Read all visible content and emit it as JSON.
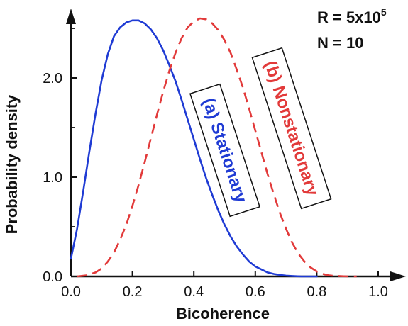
{
  "chart_data": {
    "type": "line",
    "title": "",
    "xlabel": "Bicoherence",
    "ylabel": "Probability density",
    "xlim": [
      0.0,
      1.0
    ],
    "ylim": [
      0.0,
      2.8
    ],
    "grid": false,
    "legend": "none",
    "x_ticks": [
      {
        "value": 0.0,
        "label": "0.0"
      },
      {
        "value": 0.2,
        "label": "0.2"
      },
      {
        "value": 0.4,
        "label": "0.4"
      },
      {
        "value": 0.6,
        "label": "0.6"
      },
      {
        "value": 0.8,
        "label": "0.8"
      },
      {
        "value": 1.0,
        "label": "1.0"
      }
    ],
    "y_ticks": [
      {
        "value": 0.0,
        "label": "0.0"
      },
      {
        "value": 1.0,
        "label": "1.0"
      },
      {
        "value": 2.0,
        "label": "2.0"
      }
    ],
    "y_minor_ticks": [
      0.5,
      1.5,
      2.5
    ],
    "annotations": {
      "r_label_base": "R = 5x10",
      "r_label_exp": "5",
      "n_label": "N = 10"
    },
    "series": [
      {
        "label": "(a) Stationary",
        "color": "#1f3bd4",
        "dash": "solid",
        "points": [
          [
            0.0,
            0.18
          ],
          [
            0.02,
            0.48
          ],
          [
            0.04,
            0.86
          ],
          [
            0.06,
            1.26
          ],
          [
            0.08,
            1.64
          ],
          [
            0.1,
            1.98
          ],
          [
            0.12,
            2.24
          ],
          [
            0.14,
            2.42
          ],
          [
            0.16,
            2.51
          ],
          [
            0.18,
            2.56
          ],
          [
            0.2,
            2.58
          ],
          [
            0.22,
            2.58
          ],
          [
            0.24,
            2.55
          ],
          [
            0.26,
            2.49
          ],
          [
            0.28,
            2.4
          ],
          [
            0.3,
            2.28
          ],
          [
            0.32,
            2.13
          ],
          [
            0.34,
            1.97
          ],
          [
            0.36,
            1.78
          ],
          [
            0.38,
            1.58
          ],
          [
            0.4,
            1.38
          ],
          [
            0.42,
            1.18
          ],
          [
            0.44,
            0.99
          ],
          [
            0.46,
            0.82
          ],
          [
            0.48,
            0.66
          ],
          [
            0.5,
            0.52
          ],
          [
            0.52,
            0.4
          ],
          [
            0.54,
            0.3
          ],
          [
            0.56,
            0.22
          ],
          [
            0.58,
            0.15
          ],
          [
            0.6,
            0.1
          ],
          [
            0.62,
            0.07
          ],
          [
            0.64,
            0.04
          ],
          [
            0.66,
            0.025
          ],
          [
            0.68,
            0.015
          ],
          [
            0.7,
            0.008
          ],
          [
            0.72,
            0.004
          ],
          [
            0.75,
            0.0
          ],
          [
            0.8,
            0.0
          ]
        ]
      },
      {
        "label": "(b) Nonstationary",
        "color": "#e23a3a",
        "dash": "dashed",
        "points": [
          [
            0.02,
            0.0
          ],
          [
            0.05,
            0.01
          ],
          [
            0.08,
            0.04
          ],
          [
            0.1,
            0.08
          ],
          [
            0.12,
            0.15
          ],
          [
            0.14,
            0.24
          ],
          [
            0.16,
            0.37
          ],
          [
            0.18,
            0.52
          ],
          [
            0.2,
            0.71
          ],
          [
            0.22,
            0.92
          ],
          [
            0.24,
            1.15
          ],
          [
            0.26,
            1.39
          ],
          [
            0.28,
            1.63
          ],
          [
            0.3,
            1.86
          ],
          [
            0.32,
            2.07
          ],
          [
            0.34,
            2.25
          ],
          [
            0.36,
            2.4
          ],
          [
            0.38,
            2.51
          ],
          [
            0.4,
            2.57
          ],
          [
            0.42,
            2.6
          ],
          [
            0.44,
            2.59
          ],
          [
            0.46,
            2.55
          ],
          [
            0.48,
            2.48
          ],
          [
            0.5,
            2.38
          ],
          [
            0.52,
            2.25
          ],
          [
            0.54,
            2.08
          ],
          [
            0.56,
            1.9
          ],
          [
            0.58,
            1.69
          ],
          [
            0.6,
            1.47
          ],
          [
            0.62,
            1.25
          ],
          [
            0.64,
            1.03
          ],
          [
            0.66,
            0.83
          ],
          [
            0.68,
            0.64
          ],
          [
            0.7,
            0.48
          ],
          [
            0.72,
            0.34
          ],
          [
            0.74,
            0.23
          ],
          [
            0.76,
            0.15
          ],
          [
            0.78,
            0.09
          ],
          [
            0.8,
            0.05
          ],
          [
            0.82,
            0.025
          ],
          [
            0.84,
            0.01
          ],
          [
            0.86,
            0.005
          ],
          [
            0.9,
            0.0
          ],
          [
            0.93,
            0.0
          ]
        ]
      }
    ]
  }
}
